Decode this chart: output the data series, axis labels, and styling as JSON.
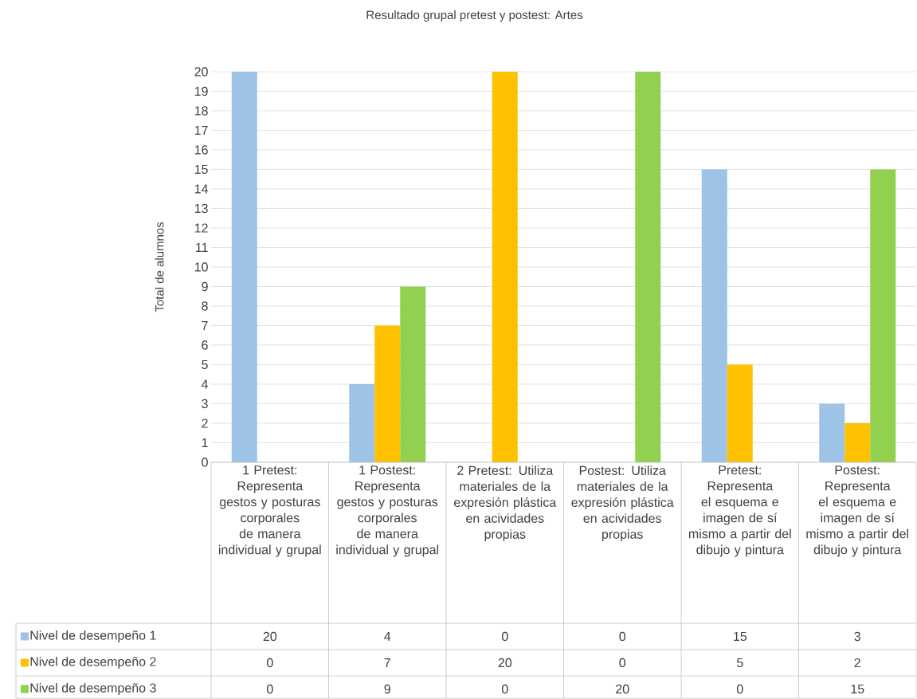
{
  "chart_data": {
    "type": "bar",
    "title": "Resultado grupal pretest y postest: Artes",
    "ylabel": "Total de alumnos",
    "categories": [
      "1 Pretest: Representa gestos y posturas corporales de manera individual y grupal",
      "1 Postest: Representa gestos y posturas corporales de manera individual y grupal",
      "2 Pretest: Utiliza materiales de la expresión plástica en acividades propias",
      "Postest: Utiliza materiales de la expresión plástica en acividades propias",
      "Pretest: Representa el esquema e imagen de sí mismo a partir del dibujo y pintura",
      "Postest: Representa el esquema e imagen de sí mismo a partir del dibujo y pintura"
    ],
    "series": [
      {
        "name": "Nivel de desempeño 1",
        "color": "#9dc3e6",
        "values": [
          20,
          4,
          0,
          0,
          15,
          3
        ]
      },
      {
        "name": "Nivel de desempeño 2",
        "color": "#ffc000",
        "values": [
          0,
          7,
          20,
          0,
          5,
          2
        ]
      },
      {
        "name": "Nivel de desempeño 3",
        "color": "#92d050",
        "values": [
          0,
          9,
          0,
          20,
          0,
          15
        ]
      }
    ],
    "ylim": [
      0,
      20
    ],
    "yticks": [
      0,
      1,
      2,
      3,
      4,
      5,
      6,
      7,
      8,
      9,
      10,
      11,
      12,
      13,
      14,
      15,
      16,
      17,
      18,
      19,
      20
    ],
    "grid": "y",
    "legend": "bottom",
    "data_labels": true
  }
}
